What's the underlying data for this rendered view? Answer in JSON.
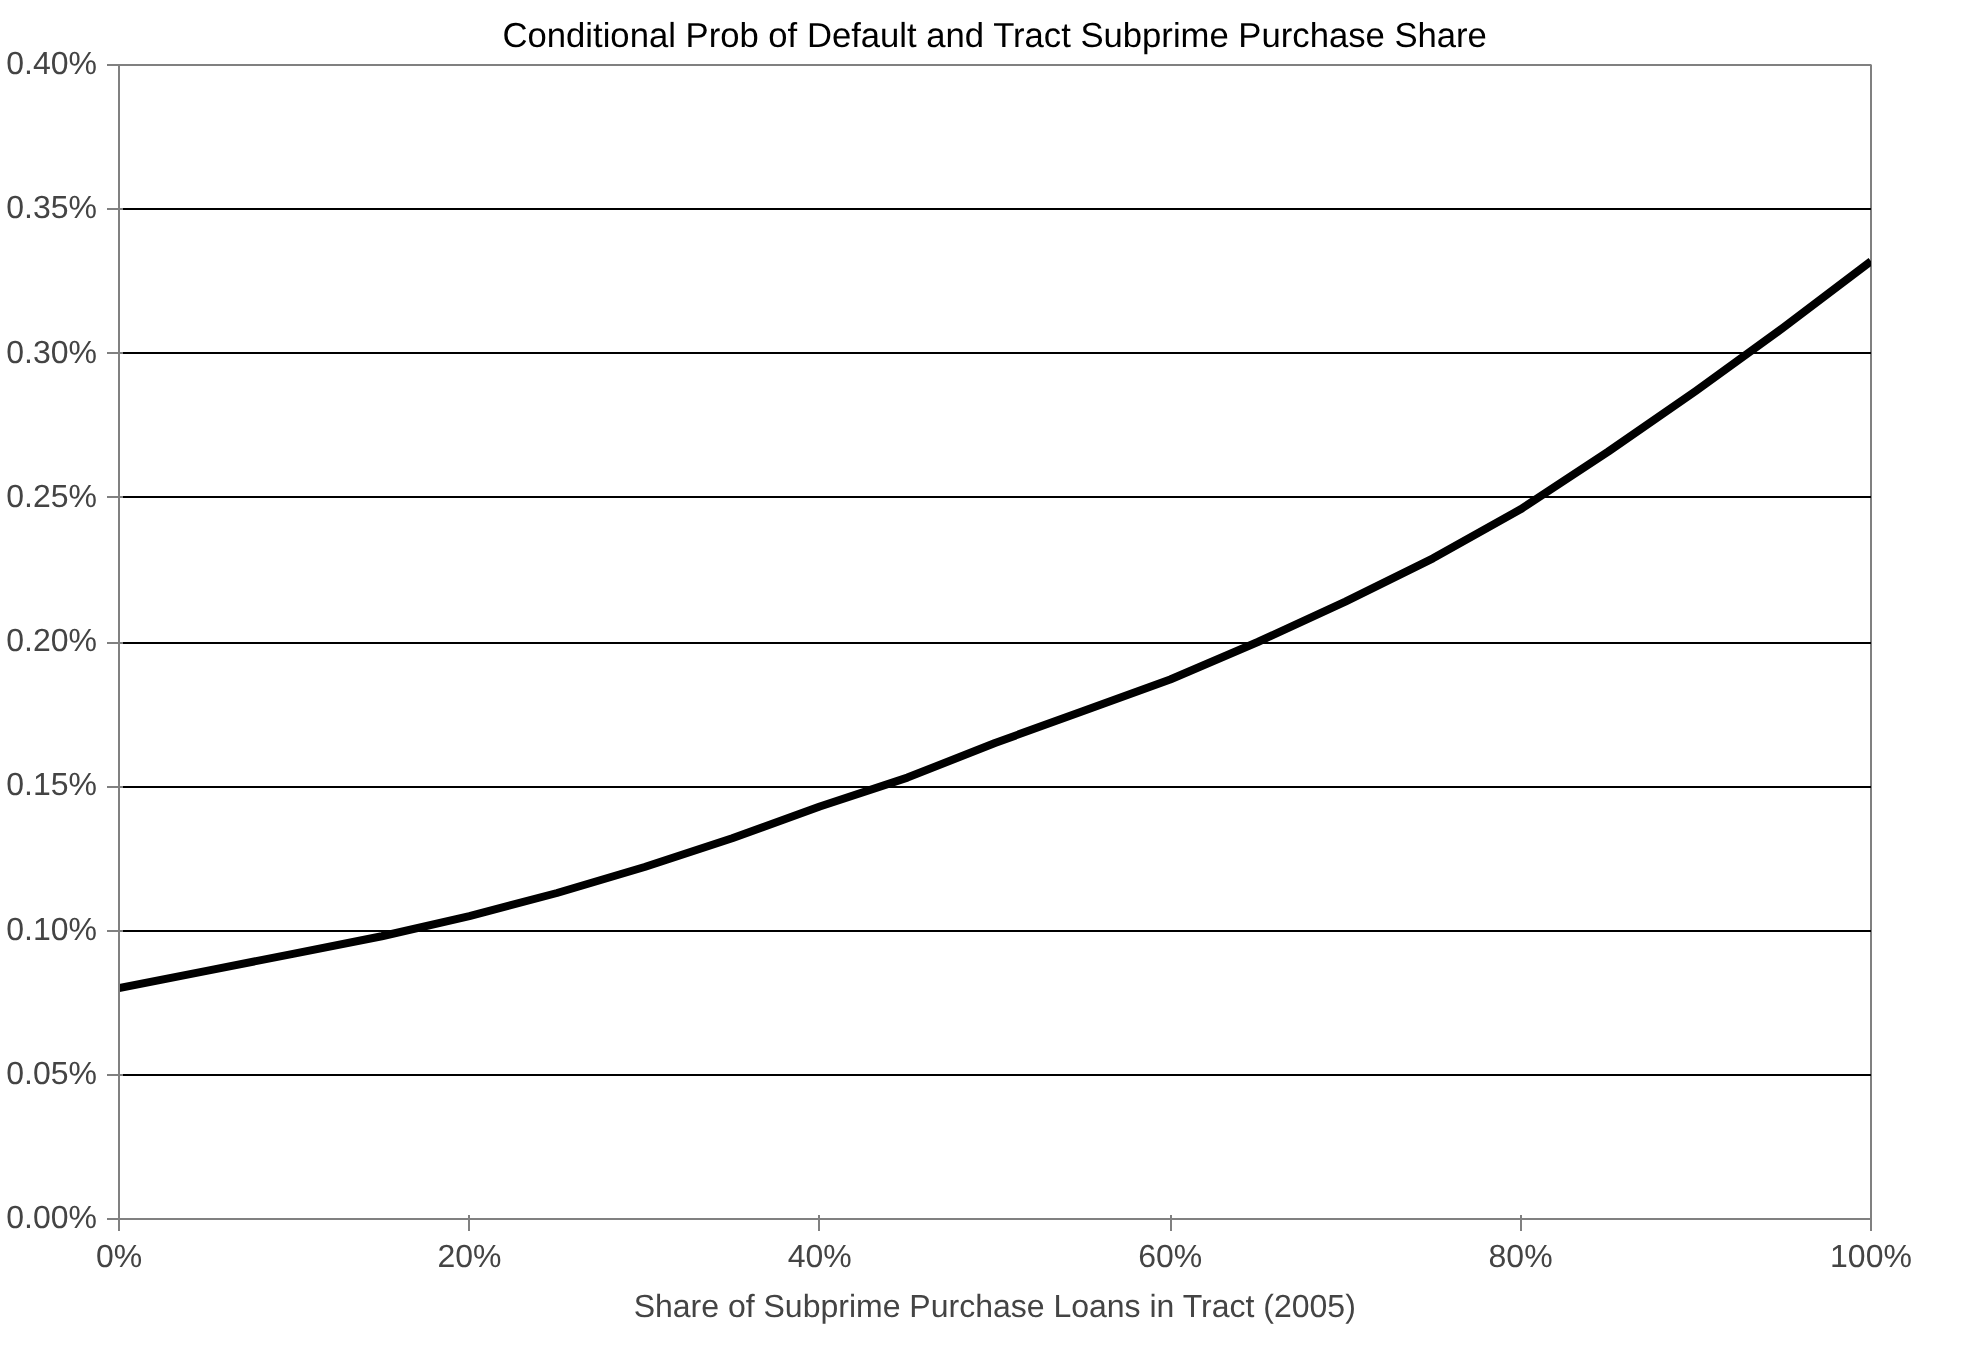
{
  "chart_data": {
    "type": "line",
    "title": "Conditional Prob of Default and Tract Subprime Purchase Share",
    "xlabel": "Share of Subprime Purchase Loans in Tract (2005)",
    "x": [
      0,
      5,
      10,
      15,
      20,
      25,
      30,
      35,
      40,
      45,
      50,
      55,
      60,
      65,
      70,
      75,
      80,
      85,
      90,
      95,
      100
    ],
    "series": [
      {
        "color": "#000000",
        "values": [
          0.08,
          0.086,
          0.092,
          0.098,
          0.105,
          0.113,
          0.122,
          0.132,
          0.143,
          0.153,
          0.165,
          0.176,
          0.187,
          0.2,
          0.214,
          0.229,
          0.246,
          0.266,
          0.287,
          0.309,
          0.332
        ]
      }
    ],
    "xlim": [
      0,
      100
    ],
    "ylim": [
      0,
      0.4
    ],
    "xticks": [
      {
        "value": 0,
        "label": "0%"
      },
      {
        "value": 20,
        "label": "20%"
      },
      {
        "value": 40,
        "label": "40%"
      },
      {
        "value": 60,
        "label": "60%"
      },
      {
        "value": 80,
        "label": "80%"
      },
      {
        "value": 100,
        "label": "100%"
      }
    ],
    "yticks": [
      {
        "value": 0,
        "label": "0.00%"
      },
      {
        "value": 0.05,
        "label": "0.05%"
      },
      {
        "value": 0.1,
        "label": "0.10%"
      },
      {
        "value": 0.15,
        "label": "0.15%"
      },
      {
        "value": 0.2,
        "label": "0.20%"
      },
      {
        "value": 0.25,
        "label": "0.25%"
      },
      {
        "value": 0.3,
        "label": "0.30%"
      },
      {
        "value": 0.35,
        "label": "0.35%"
      },
      {
        "value": 0.4,
        "label": "0.40%"
      }
    ],
    "grid": "y",
    "marker": "none",
    "line_style": "solid"
  }
}
